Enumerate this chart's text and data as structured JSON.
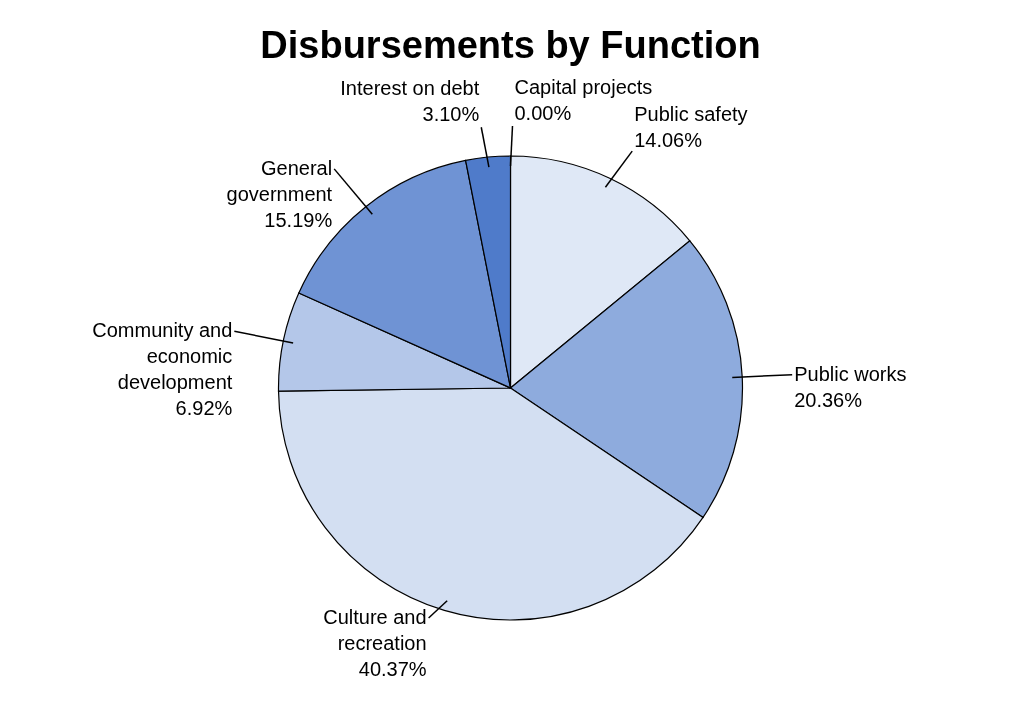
{
  "chart_data": {
    "type": "pie",
    "title": "Disbursements by Function",
    "categories": [
      "Capital projects",
      "Public safety",
      "Public works",
      "Culture and recreation",
      "Community and economic development",
      "General government",
      "Interest on debt"
    ],
    "values": [
      0.0,
      14.06,
      20.36,
      40.37,
      6.92,
      15.19,
      3.1
    ],
    "value_labels": [
      "0.00%",
      "14.06%",
      "20.36%",
      "40.37%",
      "6.92%",
      "15.19%",
      "3.10%"
    ],
    "colors": [
      "#4472c4",
      "#dfe8f6",
      "#8eabdd",
      "#d3dff2",
      "#b4c7e9",
      "#6f93d4",
      "#4f7bca"
    ]
  }
}
